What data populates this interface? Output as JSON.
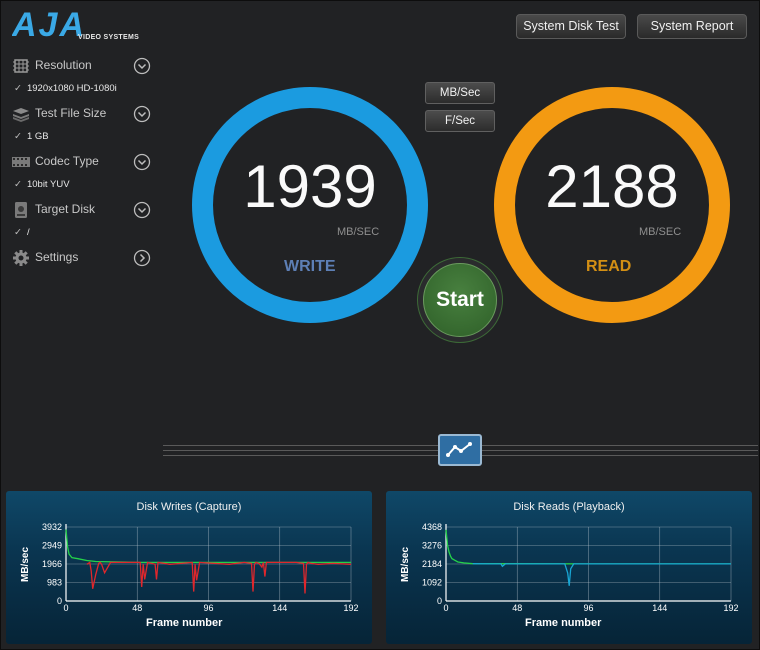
{
  "brand": {
    "logo_text": "AJA",
    "logo_sub": "VIDEO SYSTEMS"
  },
  "toolbar": {
    "disk_test_label": "System Disk Test",
    "report_label": "System Report"
  },
  "sidebar": {
    "resolution": {
      "label": "Resolution",
      "value": "1920x1080 HD-1080i",
      "icon": "resolution-grid-icon"
    },
    "file_size": {
      "label": "Test File Size",
      "value": "1 GB",
      "icon": "stack-icon"
    },
    "codec": {
      "label": "Codec Type",
      "value": "10bit YUV",
      "icon": "film-strip-icon"
    },
    "target": {
      "label": "Target Disk",
      "value": "/",
      "icon": "disk-icon"
    },
    "settings": {
      "label": "Settings",
      "icon": "gear-icon"
    },
    "check": "✓"
  },
  "write": {
    "value": "1939",
    "unit": "MB/SEC",
    "label": "WRITE",
    "color": "#1b9be0"
  },
  "read": {
    "value": "2188",
    "unit": "MB/SEC",
    "label": "READ",
    "color": "#f39a12"
  },
  "units": {
    "mbsec_label": "MB/Sec",
    "fsec_label": "F/Sec"
  },
  "start_label": "Start",
  "chart_data": [
    {
      "type": "line",
      "title": "Disk Writes (Capture)",
      "xlabel": "Frame number",
      "ylabel": "MB/sec",
      "x_ticks": [
        "0",
        "48",
        "96",
        "144",
        "192"
      ],
      "y_ticks": [
        "0",
        "983",
        "1966",
        "2949",
        "3932"
      ],
      "xlim": [
        0,
        192
      ],
      "ylim": [
        0,
        3932
      ],
      "grid": true,
      "series": [
        {
          "color": "#24d24a",
          "x": [
            0,
            1,
            2,
            4,
            8,
            14,
            20,
            48,
            96,
            144,
            192
          ],
          "values": [
            3800,
            2900,
            2500,
            2300,
            2250,
            2150,
            2100,
            2050,
            2050,
            2050,
            2050
          ]
        },
        {
          "color": "#e0272c",
          "x": [
            14,
            16,
            17,
            18,
            20,
            22,
            23,
            24,
            26,
            30,
            50,
            51,
            52,
            53,
            55,
            60,
            61,
            62,
            70,
            85,
            86,
            87,
            88,
            90,
            100,
            110,
            120,
            125,
            126,
            127,
            128,
            130,
            132,
            133,
            134,
            135,
            140,
            155,
            160,
            161,
            162,
            163,
            165,
            170,
            180,
            192
          ],
          "values": [
            1950,
            2050,
            1600,
            650,
            1400,
            2000,
            2050,
            1950,
            1500,
            2050,
            2050,
            750,
            1950,
            1150,
            2050,
            1950,
            1150,
            2050,
            1950,
            2050,
            500,
            1950,
            1100,
            2050,
            2000,
            1950,
            2050,
            2000,
            500,
            1950,
            2050,
            2000,
            1800,
            2050,
            1300,
            2050,
            2050,
            2050,
            2000,
            400,
            1950,
            2050,
            2000,
            1950,
            2000,
            1950
          ]
        }
      ]
    },
    {
      "type": "line",
      "title": "Disk Reads (Playback)",
      "xlabel": "Frame number",
      "ylabel": "MB/sec",
      "x_ticks": [
        "0",
        "48",
        "96",
        "144",
        "192"
      ],
      "y_ticks": [
        "0",
        "1092",
        "2184",
        "3276",
        "4368"
      ],
      "xlim": [
        0,
        192
      ],
      "ylim": [
        0,
        4368
      ],
      "grid": true,
      "series": [
        {
          "color": "#24d24a",
          "x": [
            0,
            1,
            2,
            3,
            4,
            6,
            8,
            12,
            18,
            48,
            96,
            144,
            192
          ],
          "values": [
            4200,
            3300,
            2900,
            2650,
            2500,
            2400,
            2300,
            2250,
            2200,
            2200,
            2190,
            2190,
            2190
          ]
        },
        {
          "color": "#18a6d4",
          "x": [
            18,
            30,
            37,
            38,
            40,
            48,
            80,
            82,
            83,
            84,
            86,
            96,
            144,
            192
          ],
          "values": [
            2200,
            2190,
            2190,
            2050,
            2190,
            2190,
            2190,
            1650,
            900,
            1900,
            2190,
            2190,
            2190,
            2190
          ]
        }
      ]
    }
  ]
}
